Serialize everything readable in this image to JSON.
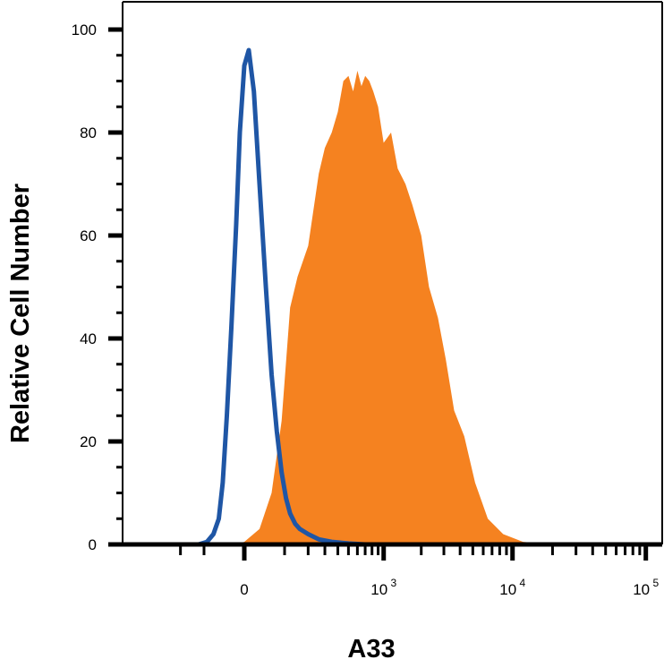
{
  "chart_data": {
    "type": "area",
    "title": "",
    "xlabel": "A33",
    "ylabel": "Relative Cell Number",
    "x_scale": "biexponential",
    "ylim": [
      0,
      100
    ],
    "yticks": [
      0,
      20,
      40,
      60,
      80,
      100
    ],
    "xtick_labels": [
      {
        "value": 0,
        "base": "0",
        "exp": ""
      },
      {
        "value": 1000,
        "base": "10",
        "exp": "3"
      },
      {
        "value": 10000,
        "base": "10",
        "exp": "4"
      },
      {
        "value": 100000,
        "base": "10",
        "exp": "5"
      }
    ],
    "grid": false,
    "legend": "none",
    "series": [
      {
        "style": "filled",
        "color": "#f58220",
        "x": [
          -20,
          0,
          30,
          60,
          90,
          120,
          150,
          200,
          260,
          300,
          350,
          400,
          450,
          500,
          550,
          600,
          650,
          700,
          760,
          820,
          900,
          1000,
          1150,
          1300,
          1500,
          1700,
          2000,
          2300,
          2700,
          3100,
          3600,
          4300,
          5200,
          6500,
          8500,
          12000,
          20000,
          50000,
          130000
        ],
        "y": [
          0,
          0.5,
          3,
          10,
          24,
          46,
          52,
          58,
          72,
          77,
          80,
          84,
          90,
          91,
          88,
          92,
          89,
          91,
          90,
          88,
          85,
          78,
          80,
          73,
          70,
          66,
          60,
          50,
          44,
          36,
          26,
          21,
          12,
          5,
          2,
          0.5,
          0,
          0,
          0
        ]
      },
      {
        "style": "line",
        "color": "#1f56a5",
        "x": [
          -200,
          -120,
          -90,
          -70,
          -55,
          -45,
          -35,
          -25,
          -15,
          -8,
          0,
          8,
          18,
          30,
          45,
          60,
          75,
          90,
          105,
          120,
          140,
          160,
          200,
          260,
          350,
          500,
          700,
          1000,
          130000
        ],
        "y": [
          0,
          0,
          0.5,
          2,
          5,
          12,
          25,
          42,
          62,
          80,
          93,
          96,
          88,
          70,
          50,
          33,
          22,
          14,
          9,
          6,
          4,
          3,
          2,
          1,
          0.5,
          0.2,
          0,
          0,
          0
        ]
      }
    ]
  }
}
